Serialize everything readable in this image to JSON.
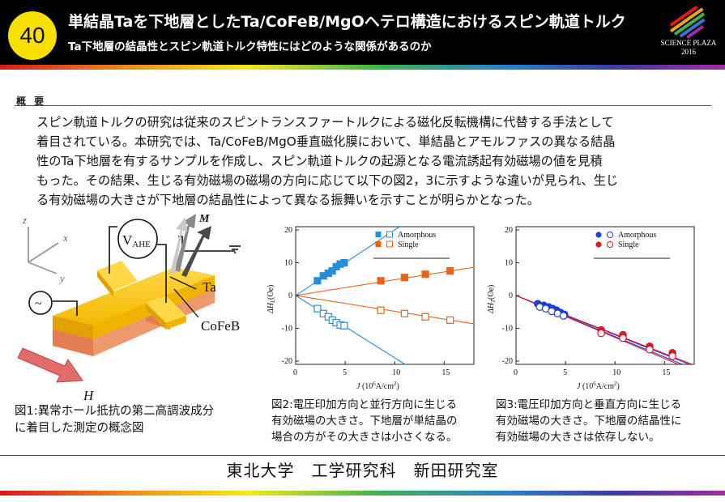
{
  "header": {
    "number": "40",
    "title": "単結晶Taを下地層としたTa/CoFeB/MgOヘテロ構造におけるスピン軌道トルク",
    "subtitle": "Ta下地層の結晶性とスピン軌道トルク特性にはどのような関係があるのか",
    "logo_line1": "SCIENCE PLAZA",
    "logo_line2": "2016"
  },
  "overview": {
    "label": "概 要",
    "text": "スピン軌道トルクの研究は従来のスピントランスファートルクによる磁化反転機構に代替する手法として\n着目されている。本研究では、Ta/CoFeB/MgO垂直磁化膜において、単結晶とアモルファスの異なる結晶\n性のTa下地層を有するサンプルを作成し、スピン軌道トルクの起源となる電流誘起有効磁場の値を見積\nもった。その結果、生じる有効磁場の磁場の方向に応じて以下の図2，3に示すような違いが見られ、生じ\nる有効磁場の大きさが下地層の結晶性によって異なる振舞いを示すことが明らかとなった。"
  },
  "figure1": {
    "label_z": "z",
    "label_x": "x",
    "label_y": "y",
    "label_vahe": "V",
    "label_vahe_sub": "AHE",
    "label_m": "M",
    "label_ta": "Ta",
    "label_cofeb": "CoFeB",
    "label_h": "H",
    "label_ac": "~",
    "caption": "図1:異常ホール抵抗の第二高調波成分\nに着目した測定の概念図"
  },
  "figure2": {
    "caption": "図2:電圧印加方向と並行方向に生じる\n有効磁場の大きさ。下地層が単結晶の\n場合の方がその大きさは小さくなる。",
    "ylabel": "ΔH_L (Oe)",
    "ylabel_main": "ΔH",
    "ylabel_sub": "L",
    "ylabel_unit": "(Oe)",
    "xlabel": "J (10^6 A/cm^2)",
    "xlabel_main": "J",
    "xlabel_rest": "(10",
    "xlabel_exp": "6",
    "xlabel_tail": "A/cm",
    "xlabel_exp2": "2",
    "xlabel_close": ")",
    "legend": [
      "Amorphous",
      "Single"
    ],
    "xticks": [
      "0",
      "5",
      "10",
      "15"
    ],
    "yticks": [
      "20",
      "10",
      "0",
      "-10",
      "-20"
    ]
  },
  "figure3": {
    "caption": "図3:電圧印加方向と垂直方向に生じる\n有効磁場の大きさ。下地層の結晶性に\n有効磁場の大きさは依存しない。",
    "ylabel": "ΔH_T (Oe)",
    "ylabel_main": "ΔH",
    "ylabel_sub": "T",
    "ylabel_unit": "(Oe)",
    "xlabel": "J (10^6 A/cm^2)",
    "xlabel_main": "J",
    "xlabel_rest": "(10",
    "xlabel_exp": "6",
    "xlabel_tail": "A/cm",
    "xlabel_exp2": "2",
    "xlabel_close": ")",
    "legend": [
      "Amorphous",
      "Single"
    ],
    "xticks": [
      "0",
      "5",
      "10",
      "15"
    ],
    "yticks": [
      "20",
      "10",
      "0",
      "-10",
      "-20"
    ]
  },
  "chart_data": [
    {
      "type": "scatter",
      "title": "",
      "xlabel": "J (10^6 A/cm^2)",
      "ylabel": "ΔH_L (Oe)",
      "xlim": [
        0,
        18
      ],
      "ylim": [
        -21,
        21
      ],
      "colors": {
        "amorphous": "#2a8ed6",
        "single": "#e8641a"
      },
      "series": [
        {
          "name": "Amorphous",
          "marker": "filled-square",
          "color": "#2a8ed6",
          "x": [
            2.2,
            2.8,
            3.3,
            3.7,
            4.1,
            4.5,
            4.9
          ],
          "y": [
            4.5,
            6.0,
            6.8,
            7.5,
            8.8,
            9.6,
            10.0
          ]
        },
        {
          "name": "Amorphous",
          "marker": "open-square",
          "color": "#2a8ed6",
          "x": [
            2.2,
            2.8,
            3.3,
            3.7,
            4.1,
            4.5,
            4.9
          ],
          "y": [
            -4.0,
            -5.5,
            -6.5,
            -7.5,
            -8.3,
            -9.0,
            -9.2
          ]
        },
        {
          "name": "Single",
          "marker": "filled-square",
          "color": "#e8641a",
          "x": [
            8.6,
            11.0,
            13.1,
            15.6
          ],
          "y": [
            4.5,
            5.5,
            6.5,
            7.5
          ]
        },
        {
          "name": "Single",
          "marker": "open-square",
          "color": "#e8641a",
          "x": [
            8.6,
            11.0,
            13.1,
            15.6
          ],
          "y": [
            -4.5,
            -5.5,
            -6.5,
            -7.5
          ]
        }
      ],
      "fit_lines": [
        {
          "color": "#2a8ed6",
          "slope": 2.0
        },
        {
          "color": "#2a8ed6",
          "slope": -1.9
        },
        {
          "color": "#e8641a",
          "slope": 0.48
        },
        {
          "color": "#e8641a",
          "slope": -0.48
        }
      ]
    },
    {
      "type": "scatter",
      "title": "",
      "xlabel": "J (10^6 A/cm^2)",
      "ylabel": "ΔH_T (Oe)",
      "xlim": [
        0,
        18
      ],
      "ylim": [
        -21,
        21
      ],
      "colors": {
        "amorphous": "#1f3fd0",
        "single": "#d81a2a"
      },
      "series": [
        {
          "name": "Amorphous",
          "marker": "filled-circle",
          "color": "#1f3fd0",
          "x": [
            2.2,
            2.8,
            3.3,
            3.7,
            4.1,
            4.5,
            4.9
          ],
          "y": [
            -2.5,
            -3.0,
            -3.5,
            -4.0,
            -4.5,
            -5.2,
            -5.8
          ]
        },
        {
          "name": "Amorphous",
          "marker": "open-circle",
          "color": "#1f3fd0",
          "x": [
            2.4,
            3.0,
            3.6,
            4.2,
            4.8
          ],
          "y": [
            -3.5,
            -4.0,
            -4.8,
            -5.5,
            -6.2
          ]
        },
        {
          "name": "Single",
          "marker": "filled-circle",
          "color": "#d81a2a",
          "x": [
            8.6,
            10.8,
            13.5,
            15.8
          ],
          "y": [
            -10.5,
            -12.0,
            -15.5,
            -17.5
          ]
        },
        {
          "name": "Single",
          "marker": "open-circle",
          "color": "#d81a2a",
          "x": [
            8.6,
            10.8,
            13.5,
            15.8
          ],
          "y": [
            -11.5,
            -13.0,
            -16.5,
            -18.5
          ]
        }
      ],
      "fit_lines": [
        {
          "color": "#1f3fd0",
          "slope": -1.2
        },
        {
          "color": "#d81a2a",
          "slope": -1.18
        },
        {
          "color": "#1f3fd0",
          "slope": -1.25
        },
        {
          "color": "#d81a2a",
          "slope": -1.28
        }
      ]
    }
  ],
  "footer": {
    "text": "東北大学　工学研究科　新田研究室"
  }
}
